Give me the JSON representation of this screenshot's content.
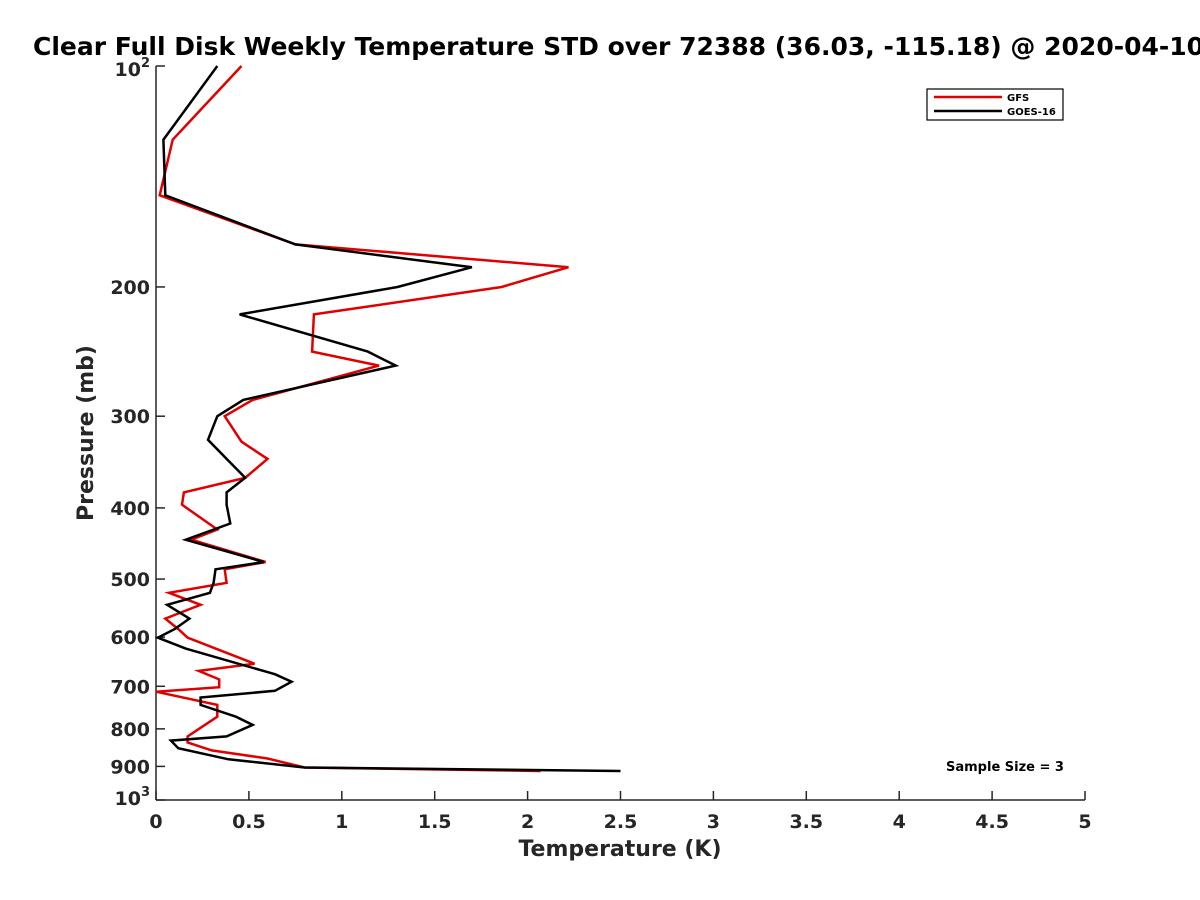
{
  "chart_data": {
    "type": "line",
    "title": "Clear Full Disk Weekly Temperature STD over 72388 (36.03, -115.18) @ 2020-04-10",
    "xlabel": "Temperature (K)",
    "ylabel": "Pressure (mb)",
    "xlim": [
      0,
      5
    ],
    "ylim": [
      100,
      1000
    ],
    "y_scale": "log",
    "y_reversed": true,
    "grid": false,
    "legend_position": "top-right",
    "x_ticks": [
      0,
      0.5,
      1,
      1.5,
      2,
      2.5,
      3,
      3.5,
      4,
      4.5,
      5
    ],
    "x_tick_labels": [
      "0",
      "0.5",
      "1",
      "1.5",
      "2",
      "2.5",
      "3",
      "3.5",
      "4",
      "4.5",
      "5"
    ],
    "y_ticks": [
      {
        "value": 100,
        "base": "10",
        "exp": "2"
      },
      {
        "value": 200,
        "label": "200"
      },
      {
        "value": 300,
        "label": "300"
      },
      {
        "value": 400,
        "label": "400"
      },
      {
        "value": 500,
        "label": "500"
      },
      {
        "value": 600,
        "label": "600"
      },
      {
        "value": 700,
        "label": "700"
      },
      {
        "value": 800,
        "label": "800"
      },
      {
        "value": 900,
        "label": "900"
      },
      {
        "value": 1000,
        "base": "10",
        "exp": "3"
      }
    ],
    "series": [
      {
        "name": "GFS",
        "color": "#e00000",
        "points": [
          [
            0.46,
            100
          ],
          [
            0.09,
            126
          ],
          [
            0.02,
            150
          ],
          [
            0.75,
            175
          ],
          [
            2.22,
            188
          ],
          [
            1.86,
            200
          ],
          [
            0.85,
            218
          ],
          [
            0.84,
            245
          ],
          [
            1.2,
            256
          ],
          [
            0.52,
            285
          ],
          [
            0.37,
            300
          ],
          [
            0.46,
            325
          ],
          [
            0.6,
            343
          ],
          [
            0.48,
            364
          ],
          [
            0.15,
            381
          ],
          [
            0.14,
            396
          ],
          [
            0.33,
            428
          ],
          [
            0.19,
            442
          ],
          [
            0.59,
            474
          ],
          [
            0.37,
            485
          ],
          [
            0.38,
            506
          ],
          [
            0.07,
            522
          ],
          [
            0.24,
            542
          ],
          [
            0.05,
            566
          ],
          [
            0.12,
            585
          ],
          [
            0.17,
            601
          ],
          [
            0.53,
            652
          ],
          [
            0.23,
            667
          ],
          [
            0.34,
            685
          ],
          [
            0.34,
            702
          ],
          [
            0.0,
            712
          ],
          [
            0.33,
            742
          ],
          [
            0.33,
            770
          ],
          [
            0.17,
            819
          ],
          [
            0.17,
            835
          ],
          [
            0.3,
            856
          ],
          [
            0.6,
            878
          ],
          [
            0.8,
            903
          ],
          [
            2.07,
            913
          ]
        ]
      },
      {
        "name": "GOES-16",
        "color": "#000000",
        "points": [
          [
            0.33,
            100
          ],
          [
            0.04,
            126
          ],
          [
            0.05,
            150
          ],
          [
            0.75,
            175
          ],
          [
            1.7,
            188
          ],
          [
            1.3,
            200
          ],
          [
            0.45,
            218
          ],
          [
            1.14,
            245
          ],
          [
            1.29,
            256
          ],
          [
            0.47,
            285
          ],
          [
            0.33,
            300
          ],
          [
            0.28,
            323
          ],
          [
            0.38,
            343
          ],
          [
            0.48,
            364
          ],
          [
            0.38,
            381
          ],
          [
            0.38,
            396
          ],
          [
            0.4,
            420
          ],
          [
            0.16,
            442
          ],
          [
            0.58,
            474
          ],
          [
            0.32,
            485
          ],
          [
            0.31,
            506
          ],
          [
            0.29,
            522
          ],
          [
            0.06,
            542
          ],
          [
            0.18,
            566
          ],
          [
            0.1,
            585
          ],
          [
            0.01,
            601
          ],
          [
            0.16,
            622
          ],
          [
            0.64,
            674
          ],
          [
            0.73,
            690
          ],
          [
            0.64,
            710
          ],
          [
            0.24,
            725
          ],
          [
            0.24,
            742
          ],
          [
            0.43,
            770
          ],
          [
            0.52,
            790
          ],
          [
            0.38,
            819
          ],
          [
            0.08,
            830
          ],
          [
            0.12,
            850
          ],
          [
            0.39,
            880
          ],
          [
            0.8,
            903
          ],
          [
            2.5,
            913
          ]
        ]
      }
    ],
    "annotation": "Sample Size = 3"
  }
}
